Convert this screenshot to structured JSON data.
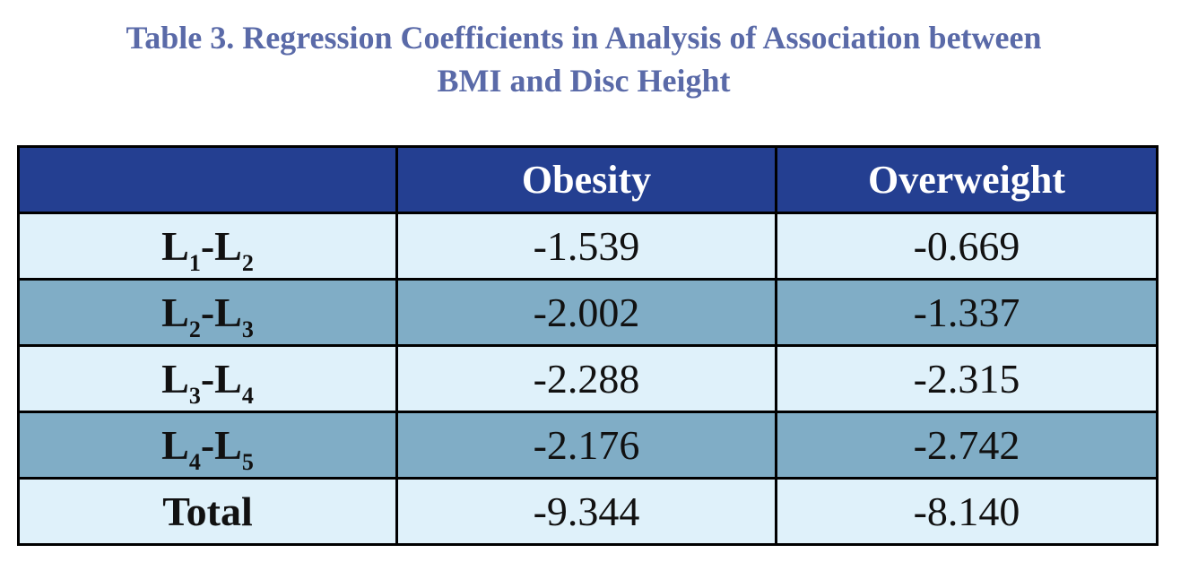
{
  "title": {
    "line1": "Table 3. Regression Coefficients in Analysis of Association between",
    "line2": "BMI and Disc Height"
  },
  "table": {
    "headers": [
      "",
      "Obesity",
      "Overweight"
    ],
    "rows": [
      {
        "label_main_1": "L",
        "label_sub_1": "1",
        "label_sep": "-",
        "label_main_2": "L",
        "label_sub_2": "2",
        "obesity": "-1.539",
        "overweight": "-0.669"
      },
      {
        "label_main_1": "L",
        "label_sub_1": "2",
        "label_sep": "-",
        "label_main_2": "L",
        "label_sub_2": "3",
        "obesity": "-2.002",
        "overweight": "-1.337"
      },
      {
        "label_main_1": "L",
        "label_sub_1": "3",
        "label_sep": "-",
        "label_main_2": "L",
        "label_sub_2": "4",
        "obesity": "-2.288",
        "overweight": "-2.315"
      },
      {
        "label_main_1": "L",
        "label_sub_1": "4",
        "label_sep": "-",
        "label_main_2": "L",
        "label_sub_2": "5",
        "obesity": "-2.176",
        "overweight": "-2.742"
      }
    ],
    "total": {
      "label": "Total",
      "obesity": "-9.344",
      "overweight": "-8.140"
    }
  },
  "colors": {
    "title": "#5a6aa8",
    "header_bg": "#243f91",
    "row_light": "#dff1fa",
    "row_dark": "#80adc6",
    "border": "#000000"
  }
}
